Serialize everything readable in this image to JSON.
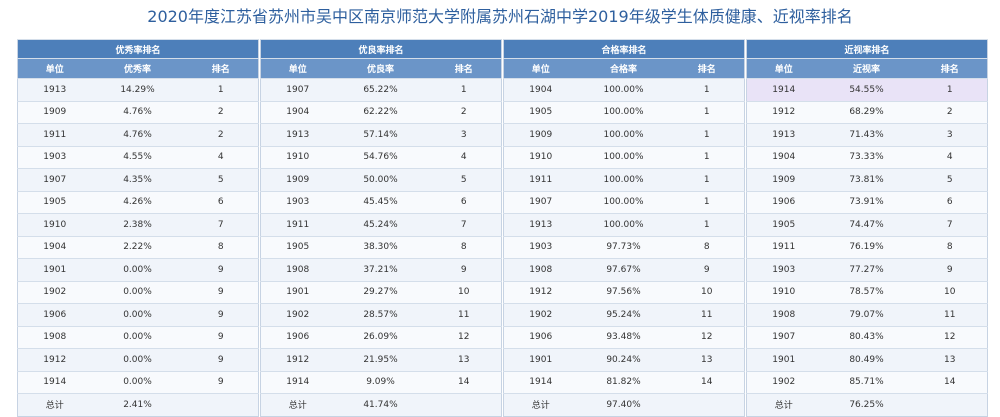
{
  "title": "2020年度江苏省苏州市吴中区南京师范大学附属苏州石湖中学2019年级学生体质健康、近视率排名",
  "tables": [
    {
      "heading": "优秀率排名",
      "columns": [
        "单位",
        "优秀率",
        "排名"
      ],
      "rows": [
        [
          "1913",
          "14.29%",
          "1"
        ],
        [
          "1909",
          "4.76%",
          "2"
        ],
        [
          "1911",
          "4.76%",
          "2"
        ],
        [
          "1903",
          "4.55%",
          "4"
        ],
        [
          "1907",
          "4.35%",
          "5"
        ],
        [
          "1905",
          "4.26%",
          "6"
        ],
        [
          "1910",
          "2.38%",
          "7"
        ],
        [
          "1904",
          "2.22%",
          "8"
        ],
        [
          "1901",
          "0.00%",
          "9"
        ],
        [
          "1902",
          "0.00%",
          "9"
        ],
        [
          "1906",
          "0.00%",
          "9"
        ],
        [
          "1908",
          "0.00%",
          "9"
        ],
        [
          "1912",
          "0.00%",
          "9"
        ],
        [
          "1914",
          "0.00%",
          "9"
        ]
      ],
      "total": [
        "总计",
        "2.41%",
        ""
      ]
    },
    {
      "heading": "优良率排名",
      "columns": [
        "单位",
        "优良率",
        "排名"
      ],
      "rows": [
        [
          "1907",
          "65.22%",
          "1"
        ],
        [
          "1904",
          "62.22%",
          "2"
        ],
        [
          "1913",
          "57.14%",
          "3"
        ],
        [
          "1910",
          "54.76%",
          "4"
        ],
        [
          "1909",
          "50.00%",
          "5"
        ],
        [
          "1903",
          "45.45%",
          "6"
        ],
        [
          "1911",
          "45.24%",
          "7"
        ],
        [
          "1905",
          "38.30%",
          "8"
        ],
        [
          "1908",
          "37.21%",
          "9"
        ],
        [
          "1901",
          "29.27%",
          "10"
        ],
        [
          "1902",
          "28.57%",
          "11"
        ],
        [
          "1906",
          "26.09%",
          "12"
        ],
        [
          "1912",
          "21.95%",
          "13"
        ],
        [
          "1914",
          "9.09%",
          "14"
        ]
      ],
      "total": [
        "总计",
        "41.74%",
        ""
      ]
    },
    {
      "heading": "合格率排名",
      "columns": [
        "单位",
        "合格率",
        "排名"
      ],
      "rows": [
        [
          "1904",
          "100.00%",
          "1"
        ],
        [
          "1905",
          "100.00%",
          "1"
        ],
        [
          "1909",
          "100.00%",
          "1"
        ],
        [
          "1910",
          "100.00%",
          "1"
        ],
        [
          "1911",
          "100.00%",
          "1"
        ],
        [
          "1907",
          "100.00%",
          "1"
        ],
        [
          "1913",
          "100.00%",
          "1"
        ],
        [
          "1903",
          "97.73%",
          "8"
        ],
        [
          "1908",
          "97.67%",
          "9"
        ],
        [
          "1912",
          "97.56%",
          "10"
        ],
        [
          "1902",
          "95.24%",
          "11"
        ],
        [
          "1906",
          "93.48%",
          "12"
        ],
        [
          "1901",
          "90.24%",
          "13"
        ],
        [
          "1914",
          "81.82%",
          "14"
        ]
      ],
      "total": [
        "总计",
        "97.40%",
        ""
      ]
    },
    {
      "heading": "近视率排名",
      "columns": [
        "单位",
        "近视率",
        "排名"
      ],
      "rows": [
        [
          "1914",
          "54.55%",
          "1"
        ],
        [
          "1912",
          "68.29%",
          "2"
        ],
        [
          "1913",
          "71.43%",
          "3"
        ],
        [
          "1904",
          "73.33%",
          "4"
        ],
        [
          "1909",
          "73.81%",
          "5"
        ],
        [
          "1906",
          "73.91%",
          "6"
        ],
        [
          "1905",
          "74.47%",
          "7"
        ],
        [
          "1911",
          "76.19%",
          "8"
        ],
        [
          "1903",
          "77.27%",
          "9"
        ],
        [
          "1910",
          "78.57%",
          "10"
        ],
        [
          "1908",
          "79.07%",
          "11"
        ],
        [
          "1907",
          "80.43%",
          "12"
        ],
        [
          "1901",
          "80.49%",
          "13"
        ],
        [
          "1902",
          "85.71%",
          "14"
        ]
      ],
      "total": [
        "总计",
        "76.25%",
        ""
      ]
    }
  ],
  "colors": {
    "title": "#2e5f9e",
    "header": "#4d7fba",
    "subheader": "#6b95c8",
    "highlight_row": "#e9e3f7"
  }
}
